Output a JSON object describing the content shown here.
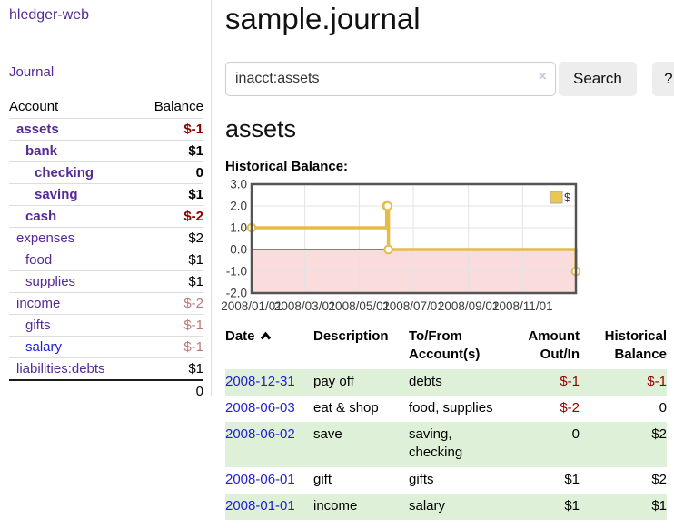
{
  "app": {
    "brand": "hledger-web"
  },
  "sidebar": {
    "journal_link": "Journal",
    "accounts": {
      "header_account": "Account",
      "header_balance": "Balance",
      "rows": [
        {
          "name": "assets",
          "indent": 1,
          "bold": true,
          "balance": "$-1",
          "balance_class": "neg-strong",
          "link": "purple"
        },
        {
          "name": "bank",
          "indent": 2,
          "bold": true,
          "balance": "$1",
          "balance_class": "plain",
          "link": "purple"
        },
        {
          "name": "checking",
          "indent": 3,
          "bold": true,
          "balance": "0",
          "balance_class": "plain",
          "link": "purple"
        },
        {
          "name": "saving",
          "indent": 3,
          "bold": true,
          "balance": "$1",
          "balance_class": "plain",
          "link": "purple"
        },
        {
          "name": "cash",
          "indent": 2,
          "bold": true,
          "balance": "$-2",
          "balance_class": "neg-strong",
          "link": "purple"
        },
        {
          "name": "expenses",
          "indent": 1,
          "bold": false,
          "balance": "$2",
          "balance_class": "plain",
          "link": "purple"
        },
        {
          "name": "food",
          "indent": 2,
          "bold": false,
          "balance": "$1",
          "balance_class": "plain",
          "link": "purple"
        },
        {
          "name": "supplies",
          "indent": 2,
          "bold": false,
          "balance": "$1",
          "balance_class": "plain",
          "link": "purple"
        },
        {
          "name": "income",
          "indent": 1,
          "bold": false,
          "balance": "$-2",
          "balance_class": "neg-soft",
          "link": "purple"
        },
        {
          "name": "gifts",
          "indent": 2,
          "bold": false,
          "balance": "$-1",
          "balance_class": "neg-soft",
          "link": "purple"
        },
        {
          "name": "salary",
          "indent": 2,
          "bold": false,
          "balance": "$-1",
          "balance_class": "neg-soft",
          "link": "blue"
        },
        {
          "name": "liabilities:debts",
          "indent": 1,
          "bold": false,
          "balance": "$1",
          "balance_class": "plain",
          "link": "purple"
        }
      ],
      "total": "0"
    }
  },
  "main": {
    "title": "sample.journal",
    "search": {
      "value": "inacct:assets",
      "clear": "×",
      "search_button": "Search",
      "help_button": "?"
    },
    "heading": "assets",
    "chart_title": "Historical Balance:"
  },
  "chart_data": {
    "type": "line",
    "title": "Historical Balance",
    "step": true,
    "markers": true,
    "series": [
      {
        "name": "$",
        "color": "#e3bd46",
        "legend_fill": "#eac654",
        "points": [
          [
            "2008/01/01",
            1
          ],
          [
            "2008/06/01",
            2
          ],
          [
            "2008/06/02",
            2
          ],
          [
            "2008/06/03",
            0
          ],
          [
            "2008/12/31",
            -1
          ]
        ]
      }
    ],
    "x_ticks": [
      "2008/01/01",
      "2008/03/01",
      "2008/05/01",
      "2008/07/01",
      "2008/09/01",
      "2008/11/01"
    ],
    "y_ticks": [
      3,
      2,
      1,
      0,
      -1,
      -2
    ],
    "xlim": [
      "2008/01/01",
      "2008/12/31"
    ],
    "ylim": [
      -2,
      3
    ],
    "grid": true,
    "legend_position": "top-right",
    "negative_region_fill": "#fadcdc",
    "zero_line_color": "#8b2a2a",
    "grid_color": "#e3e3e3",
    "border_color": "#545454"
  },
  "register": {
    "headers": {
      "date": "Date",
      "description": "Description",
      "account": "To/From Account(s)",
      "amount": "Amount Out/In",
      "balance": "Historical Balance"
    },
    "rows": [
      {
        "date": "2008-12-31",
        "description": "pay off",
        "accounts": "debts",
        "amount": "$-1",
        "amount_neg": true,
        "balance": "$-1",
        "balance_neg": true
      },
      {
        "date": "2008-06-03",
        "description": "eat & shop",
        "accounts": "food, supplies",
        "amount": "$-2",
        "amount_neg": true,
        "balance": "0",
        "balance_neg": false
      },
      {
        "date": "2008-06-02",
        "description": "save",
        "accounts": "saving, checking",
        "amount": "0",
        "amount_neg": false,
        "balance": "$2",
        "balance_neg": false
      },
      {
        "date": "2008-06-01",
        "description": "gift",
        "accounts": "gifts",
        "amount": "$1",
        "amount_neg": false,
        "balance": "$2",
        "balance_neg": false
      },
      {
        "date": "2008-01-01",
        "description": "income",
        "accounts": "salary",
        "amount": "$1",
        "amount_neg": false,
        "balance": "$1",
        "balance_neg": false
      }
    ]
  },
  "colors": {
    "link_purple": "#552a97",
    "link_blue": "#2222cc",
    "negative_strong": "#8e0000",
    "negative_soft": "#bb7878",
    "row_green": "#dff0d8",
    "accent_gold": "#e3bd46"
  }
}
